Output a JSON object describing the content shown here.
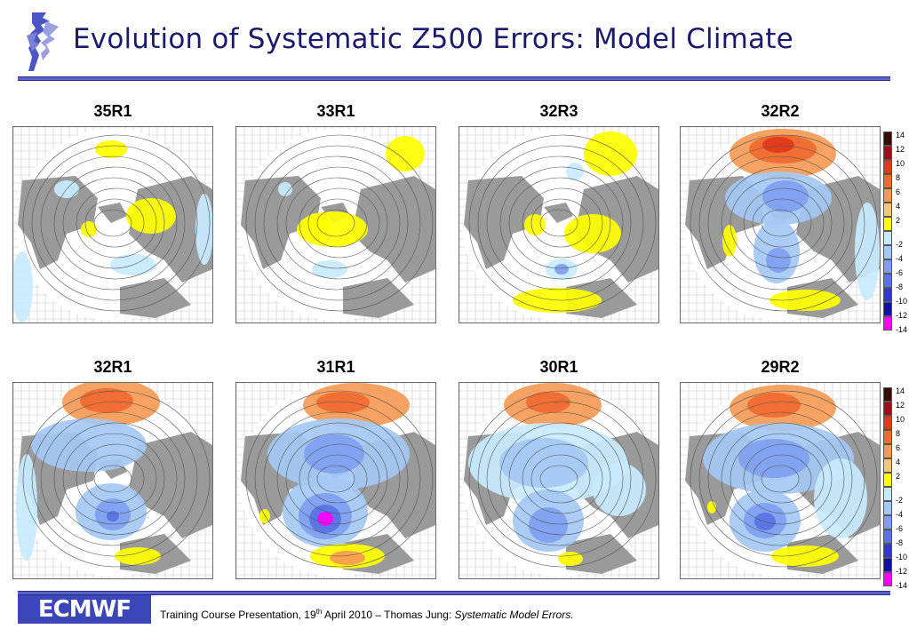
{
  "slide": {
    "title": "Evolution of Systematic Z500 Errors: Model Climate",
    "footer": {
      "logo_text": "ECMWF",
      "text_prefix": "Training Course Presentation, 19",
      "text_sup": "th",
      "text_middle": " April 2010 – Thomas Jung: ",
      "text_italic": "Systematic Model Errors."
    }
  },
  "panels": [
    {
      "label": "35R1"
    },
    {
      "label": "33R1"
    },
    {
      "label": "32R3"
    },
    {
      "label": "32R2"
    },
    {
      "label": "32R1"
    },
    {
      "label": "31R1"
    },
    {
      "label": "30R1"
    },
    {
      "label": "29R2"
    }
  ],
  "colorbar": {
    "labels": [
      "14",
      "12",
      "10",
      "8",
      "6",
      "4",
      "2",
      "-2",
      "-4",
      "-6",
      "-8",
      "-10",
      "-12",
      "-14"
    ],
    "colors": [
      "#3a0a0a",
      "#9e1010",
      "#e03818",
      "#f06a30",
      "#f59a55",
      "#f8c87a",
      "#ffff00",
      "#c8eaff",
      "#a4c8f4",
      "#7e9ff0",
      "#5a72e4",
      "#3436d2",
      "#1010a6",
      "#ff00ff"
    ]
  },
  "colors": {
    "accent_rule": "#5a62c8",
    "title_text": "#1a1a6e",
    "land": "#9a9a9a",
    "ocean": "#ffffff"
  }
}
